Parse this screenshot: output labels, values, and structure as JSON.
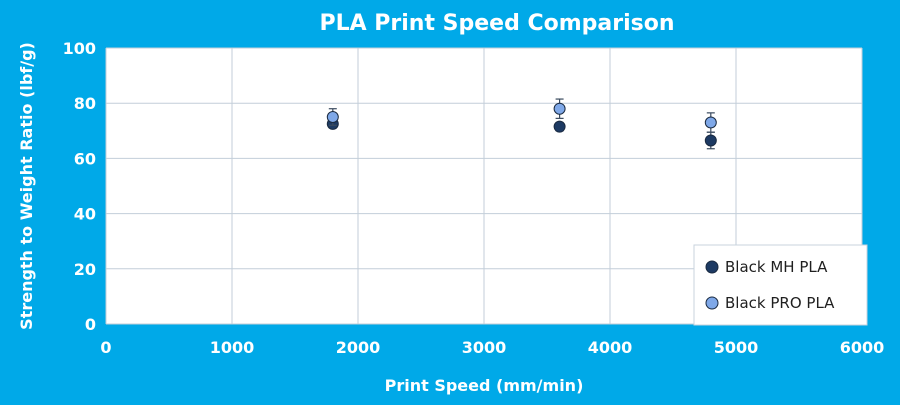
{
  "chart_data": {
    "type": "scatter",
    "title": "PLA Print Speed Comparison",
    "xlabel": "Print Speed (mm/min)",
    "ylabel": "Strength to Weight Ratio (lbf/g)",
    "xlim": [
      0,
      6000
    ],
    "ylim": [
      0,
      100
    ],
    "xticks": [
      "0",
      "1000",
      "2000",
      "3000",
      "4000",
      "5000",
      "6000"
    ],
    "yticks": [
      "0",
      "20",
      "40",
      "60",
      "80",
      "100"
    ],
    "grid": true,
    "legend_position": "bottom-right",
    "series": [
      {
        "name": "Black MH PLA",
        "color": "#1d3a63",
        "points": [
          {
            "x": 1800,
            "y": 72.5,
            "err": 1.5
          },
          {
            "x": 3600,
            "y": 71.5,
            "err": 1.5
          },
          {
            "x": 4800,
            "y": 66.5,
            "err": 3.0
          }
        ]
      },
      {
        "name": "Black PRO PLA",
        "color": "#7fa8e8",
        "points": [
          {
            "x": 1800,
            "y": 75.0,
            "err": 3.0
          },
          {
            "x": 3600,
            "y": 78.0,
            "err": 3.5
          },
          {
            "x": 4800,
            "y": 73.0,
            "err": 3.5
          }
        ]
      }
    ]
  }
}
